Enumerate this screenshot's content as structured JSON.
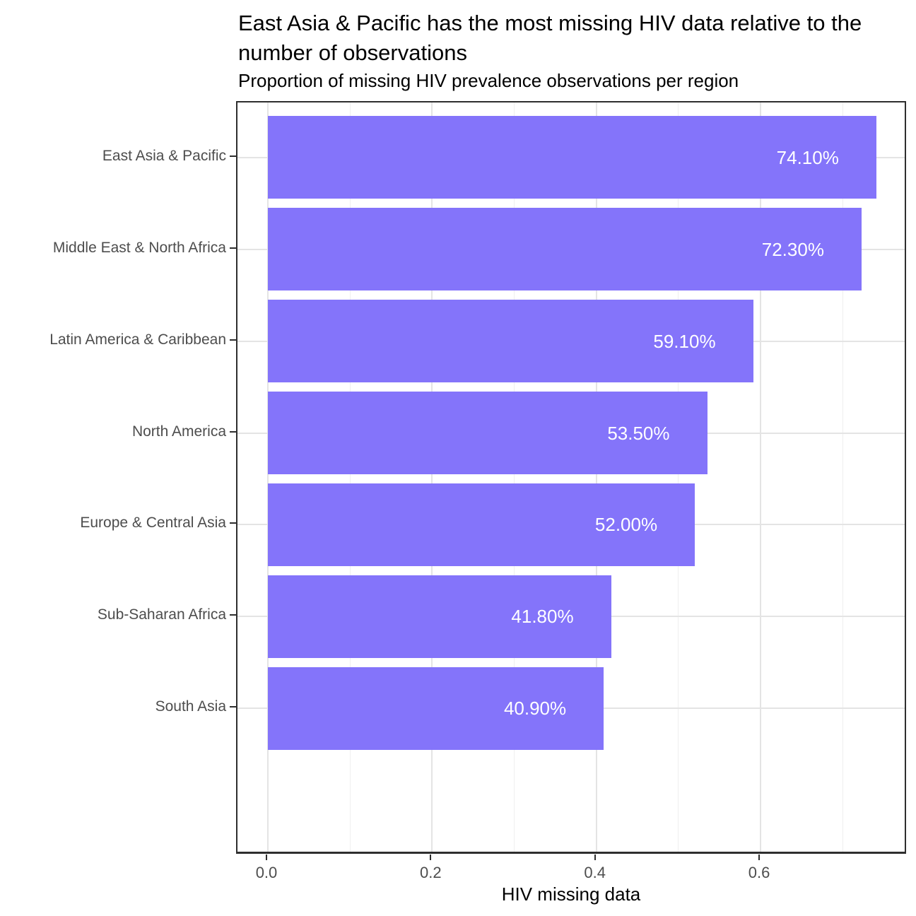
{
  "chart_data": {
    "type": "bar",
    "orientation": "horizontal",
    "title": "East Asia & Pacific has the most missing HIV data relative to the number of observations",
    "subtitle": "Proportion of missing HIV prevalence observations per region",
    "xlabel": "HIV missing data",
    "ylabel": "",
    "categories": [
      "East Asia & Pacific",
      "Middle East & North Africa",
      "Latin America & Caribbean",
      "North America",
      "Europe & Central Asia",
      "Sub-Saharan Africa",
      "South Asia"
    ],
    "values": [
      0.741,
      0.723,
      0.591,
      0.535,
      0.52,
      0.418,
      0.409
    ],
    "bar_labels": [
      "74.10%",
      "72.30%",
      "59.10%",
      "53.50%",
      "52.00%",
      "41.80%",
      "40.90%"
    ],
    "x_ticks": [
      0.0,
      0.2,
      0.4,
      0.6
    ],
    "x_tick_labels": [
      "0.0",
      "0.2",
      "0.4",
      "0.6"
    ],
    "x_minor_ticks": [
      0.1,
      0.3,
      0.5,
      0.7
    ],
    "xlim": [
      -0.037,
      0.779
    ],
    "grid": true,
    "legend": "none",
    "colors": {
      "bar": "#8474FA",
      "bar_label": "#FFFFFF",
      "grid_major": "#E4E4E4",
      "grid_minor": "#EFEFEF",
      "axis_text": "#4D4D4D",
      "axis_line": "#2E2E2E",
      "title_text": "#000000"
    }
  }
}
